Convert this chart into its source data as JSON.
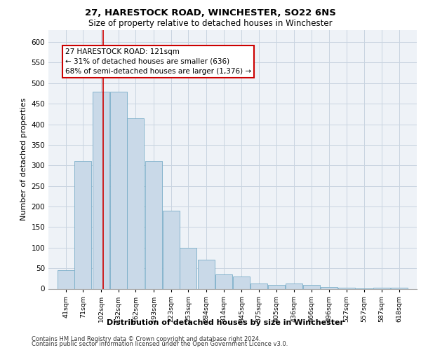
{
  "title": "27, HARESTOCK ROAD, WINCHESTER, SO22 6NS",
  "subtitle": "Size of property relative to detached houses in Winchester",
  "xlabel": "Distribution of detached houses by size in Winchester",
  "ylabel": "Number of detached properties",
  "bar_values": [
    45,
    310,
    480,
    480,
    415,
    310,
    190,
    100,
    70,
    35,
    30,
    12,
    10,
    12,
    10,
    5,
    3,
    1,
    3,
    3
  ],
  "bin_edges": [
    41,
    71,
    102,
    132,
    162,
    193,
    223,
    253,
    284,
    314,
    345,
    375,
    405,
    436,
    466,
    496,
    527,
    557,
    587,
    618,
    648
  ],
  "bar_color": "#c9d9e8",
  "bar_edge_color": "#7aaec8",
  "grid_color": "#c8d4e0",
  "background_color": "#eef2f7",
  "redline_x": 121,
  "annotation_text": "27 HARESTOCK ROAD: 121sqm\n← 31% of detached houses are smaller (636)\n68% of semi-detached houses are larger (1,376) →",
  "annotation_box_color": "#ffffff",
  "annotation_box_edge_color": "#cc0000",
  "ylim": [
    0,
    630
  ],
  "yticks": [
    0,
    50,
    100,
    150,
    200,
    250,
    300,
    350,
    400,
    450,
    500,
    550,
    600
  ],
  "footer1": "Contains HM Land Registry data © Crown copyright and database right 2024.",
  "footer2": "Contains public sector information licensed under the Open Government Licence v3.0."
}
